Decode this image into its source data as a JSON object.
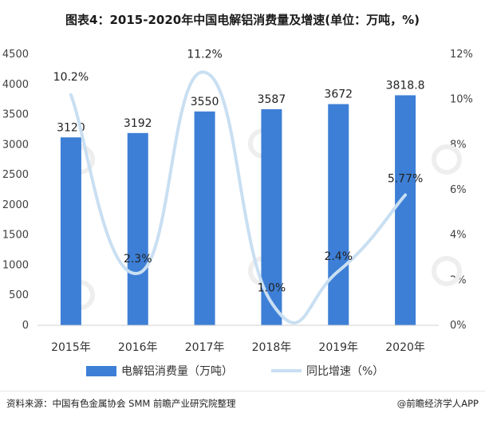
{
  "title": "图表4：2015-2020年中国电解铝消费量及增速(单位：万吨，%)",
  "chart_data": {
    "type": "bar+line",
    "categories": [
      "2015年",
      "2016年",
      "2017年",
      "2018年",
      "2019年",
      "2020年"
    ],
    "series": [
      {
        "name": "电解铝消费量（万吨）",
        "type": "bar",
        "axis": "left",
        "values": [
          3120,
          3192,
          3550,
          3587,
          3672,
          3818.8
        ],
        "labels": [
          "3120",
          "3192",
          "3550",
          "3587",
          "3672",
          "3818.8"
        ],
        "color": "#3d7fd6"
      },
      {
        "name": "同比增速（%）",
        "type": "line",
        "axis": "right",
        "smooth": true,
        "values": [
          10.2,
          2.3,
          11.2,
          1.0,
          2.4,
          5.77
        ],
        "labels": [
          "10.2%",
          "2.3%",
          "11.2%",
          "1.0%",
          "2.4%",
          "5.77%"
        ],
        "color": "#c9dff2"
      }
    ],
    "y_left": {
      "min": 0,
      "max": 4500,
      "ticks": [
        0,
        500,
        1000,
        1500,
        2000,
        2500,
        3000,
        3500,
        4000,
        4500
      ]
    },
    "y_right": {
      "min": 0,
      "max": 12,
      "ticks": [
        0,
        2,
        4,
        6,
        8,
        10,
        12
      ],
      "tick_labels": [
        "0%",
        "2%",
        "4%",
        "6%",
        "8%",
        "10%",
        "12%"
      ]
    },
    "grid": false,
    "legend_position": "bottom"
  },
  "footer": {
    "source": "资料来源：中国有色金属协会 SMM 前瞻产业研究院整理",
    "brand": "@前瞻经济学人APP"
  }
}
